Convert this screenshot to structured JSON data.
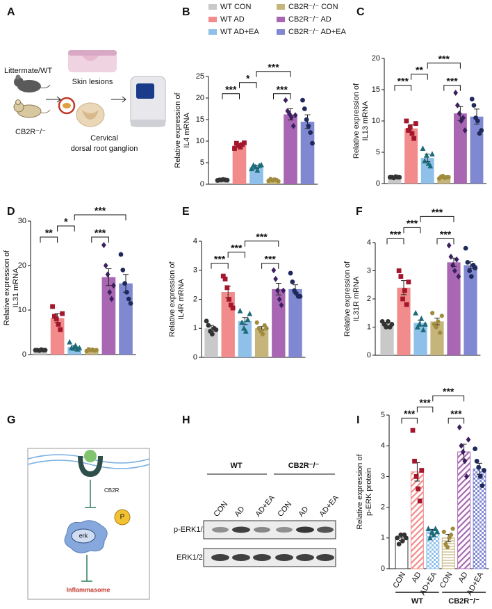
{
  "panel_a": {
    "label": "A",
    "group1": "Littermate/WT",
    "group2": "CB2R⁻/⁻",
    "sample1": "Skin lesions",
    "sample2": [
      "Cervical",
      "dorsal root ganglion"
    ]
  },
  "panel_g": {
    "label": "G",
    "receptor": "CB2R",
    "phospho": "P",
    "kinase": "erk",
    "outcome": "Inflammasome"
  },
  "panel_h": {
    "label": "H",
    "groups": [
      "WT",
      "CB2R⁻/⁻"
    ],
    "lanes": [
      "CON",
      "AD",
      "AD+EA",
      "CON",
      "AD",
      "AD+EA"
    ],
    "blots": [
      "p-ERK1/2",
      "ERK1/2"
    ]
  },
  "legend": {
    "names": [
      "WT CON",
      "WT AD",
      "WT AD+EA",
      "CB2R⁻/⁻ CON",
      "CB2R⁻/⁻ AD",
      "CB2R⁻/⁻ AD+EA"
    ],
    "colors": [
      "#c9c9c9",
      "#f28b8b",
      "#8ec0ea",
      "#c6b57a",
      "#a866b3",
      "#8088d2"
    ]
  },
  "markers": [
    "circle",
    "square",
    "triangle",
    "hexagon",
    "diamond",
    "circle"
  ],
  "point_colors": [
    "#333333",
    "#a3162b",
    "#1c6b78",
    "#a08a3c",
    "#3b1f5e",
    "#1f2a5c"
  ],
  "chart_data": [
    {
      "type": "bar",
      "panel": "B",
      "ylabel": [
        "Relative expression of",
        "IL4 mRNA"
      ],
      "ylim": [
        0,
        25
      ],
      "yticks": [
        0,
        5,
        10,
        15,
        20,
        25
      ],
      "values": [
        1.0,
        9.0,
        4.0,
        1.0,
        16.2,
        14.5
      ],
      "errors": [
        0.05,
        0.4,
        0.4,
        0.2,
        1.3,
        1.6
      ],
      "points": [
        [
          0.9,
          1.0,
          1.0,
          1.1,
          1.0,
          0.95
        ],
        [
          8.3,
          9.5,
          9.0,
          8.6,
          9.2,
          9.6
        ],
        [
          3.6,
          4.4,
          4.0,
          3.2,
          4.3,
          4.5
        ],
        [
          0.8,
          1.2,
          0.9,
          1.1,
          1.0,
          0.7
        ],
        [
          19.5,
          17.0,
          16.3,
          15.5,
          13.5,
          16.0
        ],
        [
          19.5,
          17.5,
          15.0,
          13.5,
          12.0,
          9.5
        ]
      ],
      "brackets": [
        {
          "span": [
            0,
            1
          ],
          "label": "***"
        },
        {
          "span": [
            3,
            4
          ],
          "label": "***"
        },
        {
          "span": [
            1,
            2
          ],
          "label": "*"
        },
        {
          "span": [
            2,
            4
          ],
          "label": "***"
        }
      ]
    },
    {
      "type": "bar",
      "panel": "C",
      "ylabel": [
        "Relative expression of",
        "IL13 mRNA"
      ],
      "ylim": [
        0,
        20
      ],
      "yticks": [
        0,
        5,
        10,
        15,
        20
      ],
      "values": [
        1.0,
        8.8,
        4.1,
        1.0,
        11.2,
        10.7
      ],
      "errors": [
        0.05,
        0.6,
        0.6,
        0.15,
        1.1,
        1.2
      ],
      "points": [
        [
          1.0,
          1.0,
          0.9,
          1.1,
          1.0,
          1.0
        ],
        [
          10.0,
          8.5,
          9.0,
          8.0,
          7.2,
          9.6
        ],
        [
          5.6,
          3.6,
          4.5,
          3.2,
          2.8,
          4.7
        ],
        [
          0.8,
          1.1,
          1.2,
          0.9,
          1.0,
          1.0
        ],
        [
          14.5,
          12.5,
          11.2,
          10.0,
          10.5,
          8.5
        ],
        [
          13.5,
          12.5,
          10.5,
          10.0,
          8.0,
          8.5
        ]
      ],
      "brackets": [
        {
          "span": [
            0,
            1
          ],
          "label": "***"
        },
        {
          "span": [
            3,
            4
          ],
          "label": "***"
        },
        {
          "span": [
            1,
            2
          ],
          "label": "**"
        },
        {
          "span": [
            2,
            4
          ],
          "label": "***"
        }
      ]
    },
    {
      "type": "bar",
      "panel": "D",
      "ylabel": [
        "Relative expression of",
        "IL31 mRNA"
      ],
      "ylim": [
        0,
        30
      ],
      "yticks": [
        0,
        10,
        20,
        30
      ],
      "values": [
        1.0,
        8.2,
        1.7,
        1.0,
        17.4,
        16.0
      ],
      "errors": [
        0.05,
        1.0,
        0.3,
        0.15,
        1.9,
        2.0
      ],
      "points": [
        [
          1.0,
          1.0,
          0.9,
          1.1,
          1.0,
          1.0
        ],
        [
          10.8,
          8.6,
          8.0,
          6.8,
          5.6,
          9.2
        ],
        [
          2.8,
          1.5,
          1.4,
          2.0,
          1.2,
          1.5
        ],
        [
          0.8,
          1.2,
          1.0,
          1.1,
          0.9,
          1.0
        ],
        [
          24.6,
          20.0,
          18.0,
          14.0,
          12.5,
          15.5
        ],
        [
          22.5,
          19.0,
          16.0,
          14.0,
          12.5,
          11.5
        ]
      ],
      "brackets": [
        {
          "span": [
            0,
            1
          ],
          "label": "**"
        },
        {
          "span": [
            1,
            2
          ],
          "label": "*"
        },
        {
          "span": [
            3,
            4
          ],
          "label": "***"
        },
        {
          "span": [
            2,
            5
          ],
          "label": "***"
        }
      ]
    },
    {
      "type": "bar",
      "panel": "E",
      "ylabel": [
        "Relative expression of",
        "IL4R mRNA"
      ],
      "ylim": [
        0,
        4
      ],
      "yticks": [
        0,
        1,
        2,
        3,
        4
      ],
      "values": [
        1.0,
        2.25,
        1.25,
        1.0,
        2.35,
        2.35
      ],
      "errors": [
        0.1,
        0.2,
        0.12,
        0.06,
        0.2,
        0.15
      ],
      "points": [
        [
          1.25,
          1.1,
          0.9,
          0.8,
          1.0,
          0.95
        ],
        [
          2.8,
          2.7,
          2.4,
          2.0,
          1.8,
          1.7
        ],
        [
          1.6,
          1.2,
          1.0,
          0.9,
          1.3,
          1.5
        ],
        [
          1.2,
          1.0,
          0.9,
          0.8,
          1.1,
          1.0
        ],
        [
          3.0,
          2.7,
          2.3,
          2.0,
          1.8,
          2.3
        ],
        [
          2.9,
          2.6,
          2.3,
          2.2,
          2.1,
          2.1
        ]
      ],
      "brackets": [
        {
          "span": [
            0,
            1
          ],
          "label": "***"
        },
        {
          "span": [
            3,
            4
          ],
          "label": "***"
        },
        {
          "span": [
            1,
            2
          ],
          "label": "***"
        },
        {
          "span": [
            2,
            4
          ],
          "label": "***"
        }
      ]
    },
    {
      "type": "bar",
      "panel": "F",
      "ylabel": [
        "Relative expression of",
        "IL31R mRNA"
      ],
      "ylim": [
        0,
        4
      ],
      "yticks": [
        0,
        1,
        2,
        3,
        4
      ],
      "values": [
        1.1,
        2.4,
        1.15,
        1.2,
        3.3,
        3.2
      ],
      "errors": [
        0.07,
        0.25,
        0.1,
        0.12,
        0.15,
        0.12
      ],
      "points": [
        [
          1.2,
          1.1,
          1.0,
          1.2,
          1.0,
          1.1
        ],
        [
          3.0,
          2.8,
          2.0,
          2.3,
          1.8,
          2.6
        ],
        [
          1.5,
          1.0,
          1.1,
          1.3,
          0.9,
          1.1
        ],
        [
          1.5,
          1.1,
          1.0,
          1.2,
          0.8,
          1.4
        ],
        [
          3.9,
          3.5,
          3.2,
          3.0,
          3.4,
          2.8
        ],
        [
          3.8,
          3.3,
          3.0,
          2.8,
          3.2,
          3.1
        ]
      ],
      "brackets": [
        {
          "span": [
            0,
            1
          ],
          "label": "***"
        },
        {
          "span": [
            3,
            4
          ],
          "label": "***"
        },
        {
          "span": [
            1,
            2
          ],
          "label": "***"
        },
        {
          "span": [
            2,
            4
          ],
          "label": "***"
        }
      ]
    },
    {
      "type": "bar",
      "panel": "I",
      "ylabel": [
        "Relative expression of",
        "p-ERK protein"
      ],
      "ylim": [
        0,
        5
      ],
      "yticks": [
        0,
        1,
        2,
        3,
        4,
        5
      ],
      "categories": [
        "CON",
        "AD",
        "AD+EA",
        "CON",
        "AD",
        "AD+EA"
      ],
      "groups": [
        {
          "name": "WT",
          "span": [
            0,
            2
          ]
        },
        {
          "name": "CB2R⁻/⁻",
          "span": [
            3,
            5
          ]
        }
      ],
      "patterns": [
        "none",
        "diagonal",
        "checker",
        "horizontal",
        "diagonal",
        "checker"
      ],
      "values": [
        1.0,
        3.15,
        1.2,
        1.0,
        3.8,
        3.25
      ],
      "errors": [
        0.08,
        0.3,
        0.08,
        0.12,
        0.25,
        0.18
      ],
      "points": [
        [
          1.0,
          0.8,
          1.1,
          0.9,
          1.1,
          1.0
        ],
        [
          4.5,
          3.5,
          3.0,
          2.6,
          2.2,
          3.2
        ],
        [
          1.3,
          1.0,
          1.2,
          1.1,
          1.3,
          1.2
        ],
        [
          1.2,
          0.8,
          0.7,
          1.0,
          1.1,
          1.3
        ],
        [
          4.6,
          4.0,
          3.8,
          3.5,
          3.0,
          4.2
        ],
        [
          3.9,
          3.5,
          3.3,
          3.0,
          2.7,
          3.2
        ]
      ],
      "brackets": [
        {
          "span": [
            0,
            1
          ],
          "label": "***"
        },
        {
          "span": [
            3,
            4
          ],
          "label": "***"
        },
        {
          "span": [
            1,
            2
          ],
          "label": "***"
        },
        {
          "span": [
            2,
            4
          ],
          "label": "***"
        }
      ]
    }
  ]
}
